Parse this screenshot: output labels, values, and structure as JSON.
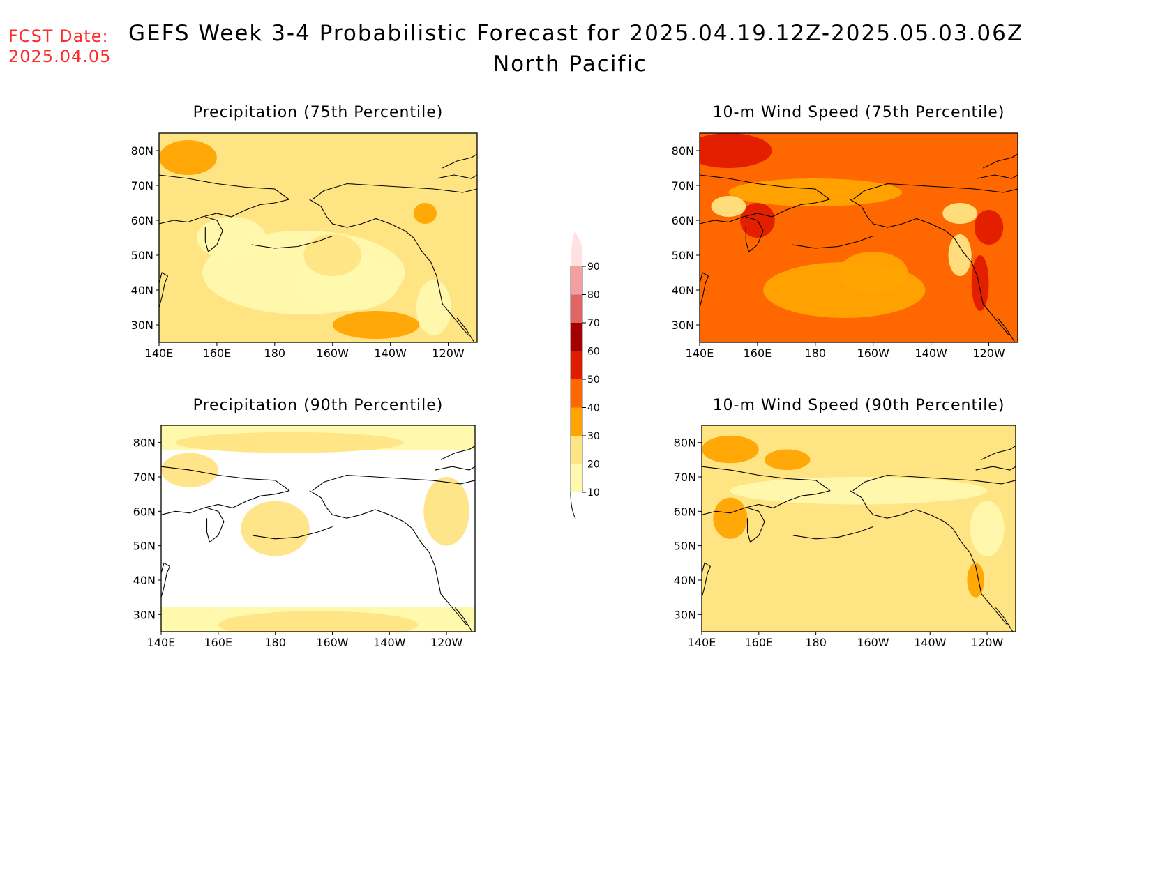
{
  "header": {
    "fcst_label": "FCST Date:",
    "fcst_date": "2025.04.05",
    "title": "GEFS Week 3-4 Probabilistic Forecast for 2025.04.19.12Z-2025.05.03.06Z",
    "subtitle": "North Pacific"
  },
  "axes": {
    "lon_ticks": [
      "140E",
      "160E",
      "180",
      "160W",
      "140W",
      "120W"
    ],
    "lat_ticks": [
      "80N",
      "70N",
      "60N",
      "50N",
      "40N",
      "30N"
    ]
  },
  "panels": [
    {
      "title": "Precipitation (75th Percentile)",
      "dominant_level": "20",
      "secondary_level": "30"
    },
    {
      "title": "10-m Wind Speed (75th Percentile)",
      "dominant_level": "40",
      "secondary_level": "50"
    },
    {
      "title": "Precipitation (90th Percentile)",
      "dominant_level": "10",
      "secondary_level": "20"
    },
    {
      "title": "10-m Wind Speed (90th Percentile)",
      "dominant_level": "20",
      "secondary_level": "30"
    }
  ],
  "colorbar": {
    "labels": [
      "10",
      "20",
      "30",
      "40",
      "50",
      "60",
      "70",
      "80",
      "90"
    ],
    "colors": [
      "#fff9ae",
      "#ffe483",
      "#ffa400",
      "#ff6700",
      "#e11b00",
      "#a40000",
      "#e06666",
      "#f4a0a0",
      "#ffe1e1"
    ]
  },
  "colors": {
    "fcst_text": "#ff2a2a",
    "coast": "#000000"
  }
}
